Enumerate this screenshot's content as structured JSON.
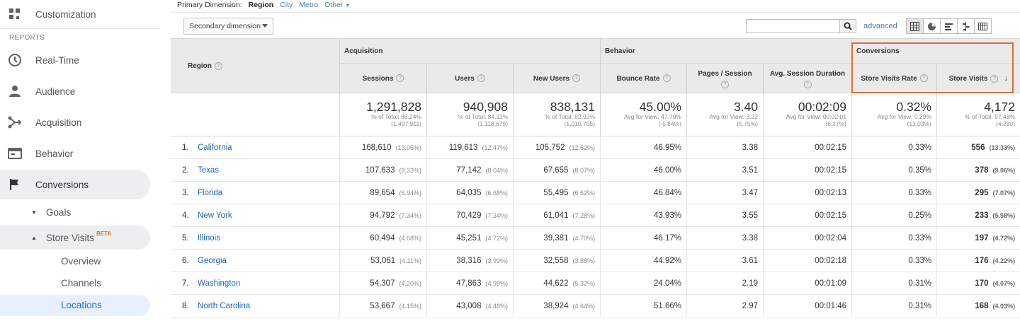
{
  "sidebar": {
    "top_item": {
      "label": "Customization",
      "icon": "grid-icon"
    },
    "section_label": "REPORTS",
    "items": [
      {
        "label": "Real-Time",
        "icon": "clock-icon"
      },
      {
        "label": "Audience",
        "icon": "person-icon"
      },
      {
        "label": "Acquisition",
        "icon": "branch-icon"
      },
      {
        "label": "Behavior",
        "icon": "window-icon"
      },
      {
        "label": "Conversions",
        "icon": "flag-icon"
      }
    ],
    "goals_label": "Goals",
    "store_visits_label": "Store Visits",
    "beta_label": "BETA",
    "sub_items": [
      "Overview",
      "Channels",
      "Locations"
    ]
  },
  "primary_dimension": {
    "label": "Primary Dimension:",
    "options": [
      "Region",
      "City",
      "Metro",
      "Other"
    ],
    "selected": "Region"
  },
  "toolbar": {
    "secondary_dimension": "Secondary dimension",
    "search_value": "",
    "advanced": "advanced"
  },
  "table": {
    "region_header": "Region",
    "groups": [
      "Acquisition",
      "Behavior",
      "Conversions"
    ],
    "columns": [
      "Sessions",
      "Users",
      "New Users",
      "Bounce Rate",
      "Pages / Session",
      "Avg. Session Duration",
      "Store Visits Rate",
      "Store Visits"
    ],
    "totals": [
      {
        "big": "1,291,828",
        "sub1": "% of Total: 86.24%",
        "sub2": "(1,497,911)"
      },
      {
        "big": "940,908",
        "sub1": "% of Total: 84.11%",
        "sub2": "(1,118,679)"
      },
      {
        "big": "838,131",
        "sub1": "% of Total: 82.92%",
        "sub2": "(1,010,755)"
      },
      {
        "big": "45.00%",
        "sub1": "Avg for View: 47.79%",
        "sub2": "(-5.84%)"
      },
      {
        "big": "3.40",
        "sub1": "Avg for View: 3.22",
        "sub2": "(5.75%)"
      },
      {
        "big": "00:02:09",
        "sub1": "Avg for View: 00:02:01",
        "sub2": "(6.27%)"
      },
      {
        "big": "0.32%",
        "sub1": "Avg for View: 0.29%",
        "sub2": "(13.03%)"
      },
      {
        "big": "4,172",
        "sub1": "% of Total: 97.48%",
        "sub2": "(4,280)"
      }
    ],
    "rows": [
      {
        "num": "1.",
        "name": "California",
        "cells": [
          [
            "168,610",
            "(13.05%)"
          ],
          [
            "119,613",
            "(12.47%)"
          ],
          [
            "105,752",
            "(12.62%)"
          ],
          [
            "46.95%",
            ""
          ],
          [
            "3.38",
            ""
          ],
          [
            "00:02:15",
            ""
          ],
          [
            "0.33%",
            ""
          ],
          [
            "556",
            "(13.33%)"
          ]
        ]
      },
      {
        "num": "2.",
        "name": "Texas",
        "cells": [
          [
            "107,633",
            "(8.33%)"
          ],
          [
            "77,142",
            "(8.04%)"
          ],
          [
            "67,655",
            "(8.07%)"
          ],
          [
            "46.00%",
            ""
          ],
          [
            "3.51",
            ""
          ],
          [
            "00:02:15",
            ""
          ],
          [
            "0.35%",
            ""
          ],
          [
            "378",
            "(9.06%)"
          ]
        ]
      },
      {
        "num": "3.",
        "name": "Florida",
        "cells": [
          [
            "89,654",
            "(6.94%)"
          ],
          [
            "64,035",
            "(6.68%)"
          ],
          [
            "55,495",
            "(6.62%)"
          ],
          [
            "46.84%",
            ""
          ],
          [
            "3.47",
            ""
          ],
          [
            "00:02:13",
            ""
          ],
          [
            "0.33%",
            ""
          ],
          [
            "295",
            "(7.07%)"
          ]
        ]
      },
      {
        "num": "4.",
        "name": "New York",
        "cells": [
          [
            "94,792",
            "(7.34%)"
          ],
          [
            "70,429",
            "(7.34%)"
          ],
          [
            "61,041",
            "(7.28%)"
          ],
          [
            "43.93%",
            ""
          ],
          [
            "3.55",
            ""
          ],
          [
            "00:02:15",
            ""
          ],
          [
            "0.25%",
            ""
          ],
          [
            "233",
            "(5.58%)"
          ]
        ]
      },
      {
        "num": "5.",
        "name": "Illinois",
        "cells": [
          [
            "60,494",
            "(4.68%)"
          ],
          [
            "45,251",
            "(4.72%)"
          ],
          [
            "39,381",
            "(4.70%)"
          ],
          [
            "46.17%",
            ""
          ],
          [
            "3.38",
            ""
          ],
          [
            "00:02:04",
            ""
          ],
          [
            "0.33%",
            ""
          ],
          [
            "197",
            "(4.72%)"
          ]
        ]
      },
      {
        "num": "6.",
        "name": "Georgia",
        "cells": [
          [
            "53,061",
            "(4.11%)"
          ],
          [
            "38,316",
            "(3.99%)"
          ],
          [
            "32,558",
            "(3.88%)"
          ],
          [
            "44.92%",
            ""
          ],
          [
            "3.61",
            ""
          ],
          [
            "00:02:18",
            ""
          ],
          [
            "0.33%",
            ""
          ],
          [
            "176",
            "(4.22%)"
          ]
        ]
      },
      {
        "num": "7.",
        "name": "Washington",
        "cells": [
          [
            "54,307",
            "(4.20%)"
          ],
          [
            "47,863",
            "(4.99%)"
          ],
          [
            "44,622",
            "(5.32%)"
          ],
          [
            "24.04%",
            ""
          ],
          [
            "2.19",
            ""
          ],
          [
            "00:01:09",
            ""
          ],
          [
            "0.31%",
            ""
          ],
          [
            "170",
            "(4.07%)"
          ]
        ]
      },
      {
        "num": "8.",
        "name": "North Carolina",
        "cells": [
          [
            "53,667",
            "(4.15%)"
          ],
          [
            "43,008",
            "(4.48%)"
          ],
          [
            "38,924",
            "(4.64%)"
          ],
          [
            "51.66%",
            ""
          ],
          [
            "2.97",
            ""
          ],
          [
            "00:01:46",
            ""
          ],
          [
            "0.31%",
            ""
          ],
          [
            "168",
            "(4.03%)"
          ]
        ]
      }
    ]
  },
  "colors": {
    "link": "#1a65c0",
    "highlight_border": "#d96f35",
    "header_bg": "#eaeaea"
  }
}
